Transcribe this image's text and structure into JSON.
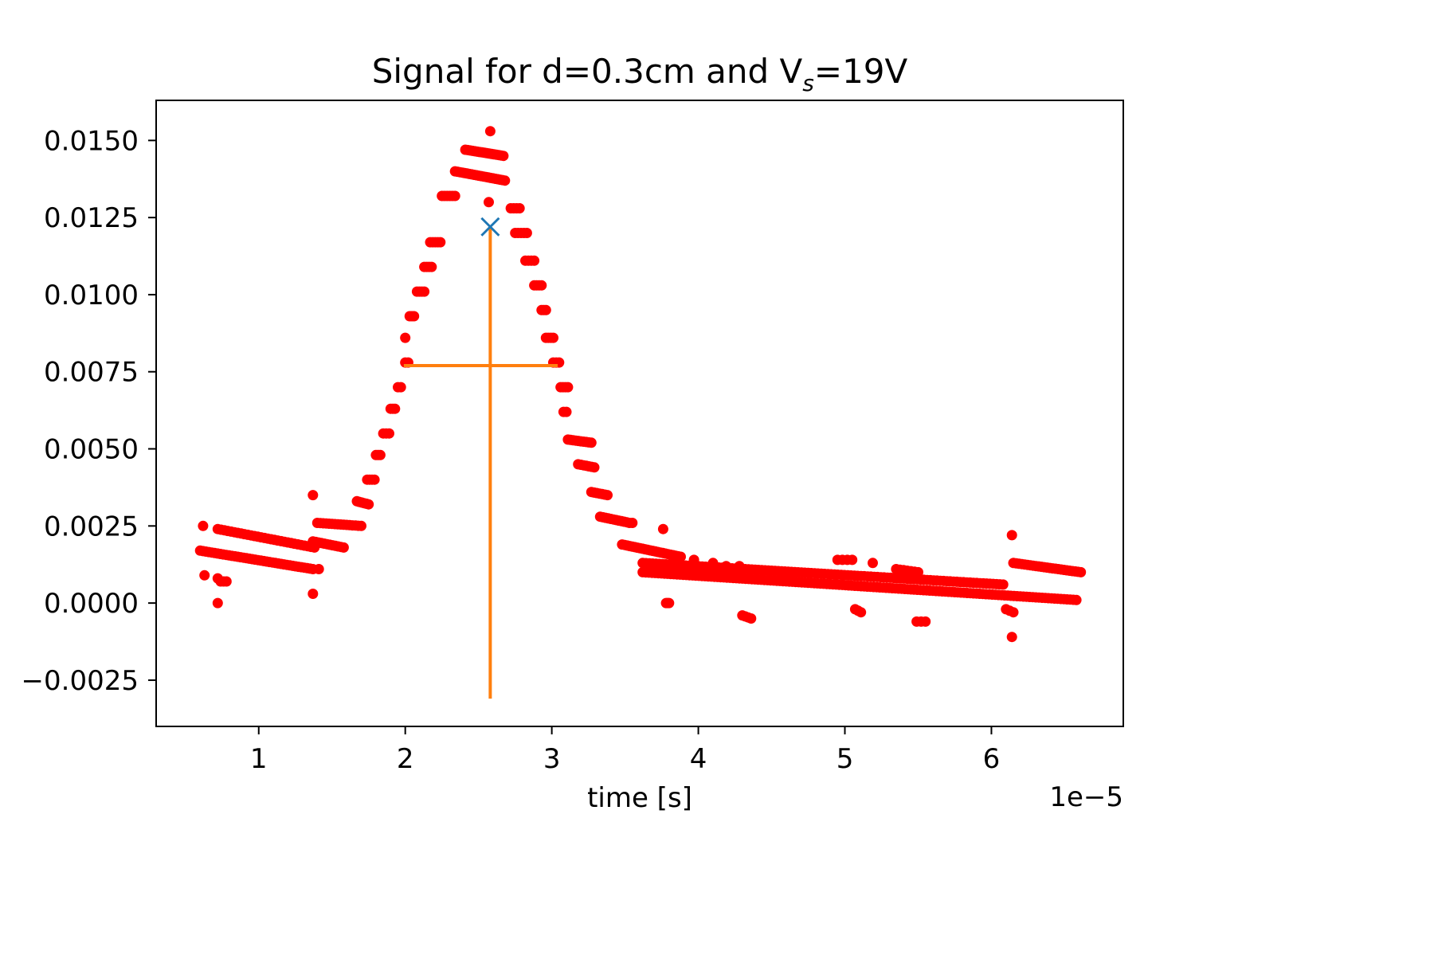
{
  "chart_data": {
    "type": "scatter",
    "title_main": "Signal for d=0.3cm and V",
    "title_sub": "s",
    "title_end": "=19V",
    "xlabel": "time [s]",
    "ylabel": "",
    "x_offset_text": "1e−5",
    "x_scale": 1e-05,
    "xlim": [
      0.3,
      6.9
    ],
    "ylim": [
      -0.004,
      0.0163
    ],
    "x_ticks": [
      1,
      2,
      3,
      4,
      5,
      6
    ],
    "x_tick_labels": [
      "1",
      "2",
      "3",
      "4",
      "5",
      "6"
    ],
    "y_ticks": [
      -0.0025,
      0.0,
      0.0025,
      0.005,
      0.0075,
      0.01,
      0.0125,
      0.015
    ],
    "y_tick_labels": [
      "−0.0025",
      "0.0000",
      "0.0025",
      "0.0050",
      "0.0075",
      "0.0100",
      "0.0125",
      "0.0150"
    ],
    "grid": false,
    "colors": {
      "signal": "#ff0000",
      "peak_marker": "#1f77b4",
      "fwhm_lines": "#ff7f0e"
    },
    "peak_marker": {
      "x": 2.58,
      "y": 0.0122
    },
    "vertical_line": {
      "x": 2.58,
      "y_from": -0.0031,
      "y_to": 0.0122
    },
    "horizontal_line": {
      "y": 0.0077,
      "x_from": 1.99,
      "x_to": 3.04
    },
    "series_segments": [
      {
        "x_start": 0.6,
        "x_end": 1.37,
        "y_start": 0.0017,
        "y_end": 0.0011,
        "n": 40
      },
      {
        "x_start": 0.72,
        "x_end": 1.38,
        "y_start": 0.0024,
        "y_end": 0.0018,
        "n": 30
      },
      {
        "x_start": 1.37,
        "x_end": 1.58,
        "y_start": 0.002,
        "y_end": 0.0018,
        "n": 12
      },
      {
        "x_start": 1.4,
        "x_end": 1.7,
        "y_start": 0.0026,
        "y_end": 0.0025,
        "n": 16
      },
      {
        "x_start": 1.67,
        "x_end": 1.75,
        "y_start": 0.0033,
        "y_end": 0.0032,
        "n": 6
      },
      {
        "x_start": 1.74,
        "x_end": 1.79,
        "y_start": 0.004,
        "y_end": 0.004,
        "n": 4
      },
      {
        "x_start": 1.8,
        "x_end": 1.83,
        "y_start": 0.0048,
        "y_end": 0.0048,
        "n": 3
      },
      {
        "x_start": 1.85,
        "x_end": 1.89,
        "y_start": 0.0055,
        "y_end": 0.0055,
        "n": 3
      },
      {
        "x_start": 1.9,
        "x_end": 1.93,
        "y_start": 0.0063,
        "y_end": 0.0063,
        "n": 3
      },
      {
        "x_start": 1.95,
        "x_end": 1.97,
        "y_start": 0.007,
        "y_end": 0.007,
        "n": 2
      },
      {
        "x_start": 2.0,
        "x_end": 2.02,
        "y_start": 0.0078,
        "y_end": 0.0078,
        "n": 2
      },
      {
        "x_start": 2.03,
        "x_end": 2.06,
        "y_start": 0.0093,
        "y_end": 0.0093,
        "n": 3
      },
      {
        "x_start": 2.08,
        "x_end": 2.13,
        "y_start": 0.0101,
        "y_end": 0.0101,
        "n": 4
      },
      {
        "x_start": 2.13,
        "x_end": 2.18,
        "y_start": 0.0109,
        "y_end": 0.0109,
        "n": 4
      },
      {
        "x_start": 2.17,
        "x_end": 2.24,
        "y_start": 0.0117,
        "y_end": 0.0117,
        "n": 5
      },
      {
        "x_start": 2.25,
        "x_end": 2.34,
        "y_start": 0.0132,
        "y_end": 0.0132,
        "n": 6
      },
      {
        "x_start": 2.34,
        "x_end": 2.68,
        "y_start": 0.014,
        "y_end": 0.0137,
        "n": 22
      },
      {
        "x_start": 2.41,
        "x_end": 2.67,
        "y_start": 0.0147,
        "y_end": 0.0145,
        "n": 17
      },
      {
        "x_start": 2.72,
        "x_end": 2.78,
        "y_start": 0.0128,
        "y_end": 0.0128,
        "n": 4
      },
      {
        "x_start": 2.75,
        "x_end": 2.83,
        "y_start": 0.012,
        "y_end": 0.012,
        "n": 5
      },
      {
        "x_start": 2.82,
        "x_end": 2.88,
        "y_start": 0.0111,
        "y_end": 0.0111,
        "n": 4
      },
      {
        "x_start": 2.88,
        "x_end": 2.93,
        "y_start": 0.0103,
        "y_end": 0.0103,
        "n": 4
      },
      {
        "x_start": 2.93,
        "x_end": 2.96,
        "y_start": 0.0095,
        "y_end": 0.0095,
        "n": 3
      },
      {
        "x_start": 2.96,
        "x_end": 3.01,
        "y_start": 0.0086,
        "y_end": 0.0086,
        "n": 4
      },
      {
        "x_start": 3.01,
        "x_end": 3.05,
        "y_start": 0.0078,
        "y_end": 0.0078,
        "n": 3
      },
      {
        "x_start": 3.06,
        "x_end": 3.11,
        "y_start": 0.007,
        "y_end": 0.007,
        "n": 4
      },
      {
        "x_start": 3.08,
        "x_end": 3.1,
        "y_start": 0.0062,
        "y_end": 0.0062,
        "n": 2
      },
      {
        "x_start": 3.11,
        "x_end": 3.27,
        "y_start": 0.0053,
        "y_end": 0.0052,
        "n": 10
      },
      {
        "x_start": 3.18,
        "x_end": 3.29,
        "y_start": 0.0045,
        "y_end": 0.0044,
        "n": 7
      },
      {
        "x_start": 3.27,
        "x_end": 3.38,
        "y_start": 0.0036,
        "y_end": 0.0035,
        "n": 7
      },
      {
        "x_start": 3.33,
        "x_end": 3.53,
        "y_start": 0.0028,
        "y_end": 0.0026,
        "n": 12
      },
      {
        "x_start": 3.48,
        "x_end": 3.88,
        "y_start": 0.0019,
        "y_end": 0.0015,
        "n": 24
      },
      {
        "x_start": 3.62,
        "x_end": 6.08,
        "y_start": 0.0013,
        "y_end": 0.0006,
        "n": 110
      },
      {
        "x_start": 3.62,
        "x_end": 6.58,
        "y_start": 0.001,
        "y_end": 0.0001,
        "n": 140
      },
      {
        "x_start": 6.15,
        "x_end": 6.61,
        "y_start": 0.0013,
        "y_end": 0.001,
        "n": 25
      },
      {
        "x_start": 3.78,
        "x_end": 3.8,
        "y_start": 0.0,
        "y_end": 0.0,
        "n": 3
      },
      {
        "x_start": 4.3,
        "x_end": 4.36,
        "y_start": -0.0004,
        "y_end": -0.0005,
        "n": 4
      },
      {
        "x_start": 5.07,
        "x_end": 5.11,
        "y_start": -0.0002,
        "y_end": -0.0003,
        "n": 3
      },
      {
        "x_start": 5.49,
        "x_end": 5.55,
        "y_start": -0.0006,
        "y_end": -0.0006,
        "n": 3
      },
      {
        "x_start": 6.1,
        "x_end": 6.15,
        "y_start": -0.0002,
        "y_end": -0.0003,
        "n": 3
      },
      {
        "x_start": 4.95,
        "x_end": 5.05,
        "y_start": 0.0014,
        "y_end": 0.0014,
        "n": 4
      },
      {
        "x_start": 5.35,
        "x_end": 5.5,
        "y_start": 0.0011,
        "y_end": 0.001,
        "n": 7
      }
    ],
    "series_points": [
      {
        "x": 0.62,
        "y": 0.0025
      },
      {
        "x": 0.63,
        "y": 0.0009
      },
      {
        "x": 0.72,
        "y": 0.0
      },
      {
        "x": 0.72,
        "y": 0.0008
      },
      {
        "x": 0.74,
        "y": 0.0007
      },
      {
        "x": 0.76,
        "y": 0.0007
      },
      {
        "x": 0.78,
        "y": 0.0007
      },
      {
        "x": 1.37,
        "y": 0.0035
      },
      {
        "x": 1.37,
        "y": 0.0003
      },
      {
        "x": 1.41,
        "y": 0.0011
      },
      {
        "x": 2.58,
        "y": 0.0153
      },
      {
        "x": 2.57,
        "y": 0.013
      },
      {
        "x": 2.0,
        "y": 0.0086
      },
      {
        "x": 3.55,
        "y": 0.0026
      },
      {
        "x": 3.76,
        "y": 0.0024
      },
      {
        "x": 3.97,
        "y": 0.0014
      },
      {
        "x": 4.1,
        "y": 0.0013
      },
      {
        "x": 4.19,
        "y": 0.0012
      },
      {
        "x": 4.28,
        "y": 0.0012
      },
      {
        "x": 5.19,
        "y": 0.0013
      },
      {
        "x": 6.14,
        "y": 0.0022
      },
      {
        "x": 6.14,
        "y": -0.0011
      }
    ]
  }
}
